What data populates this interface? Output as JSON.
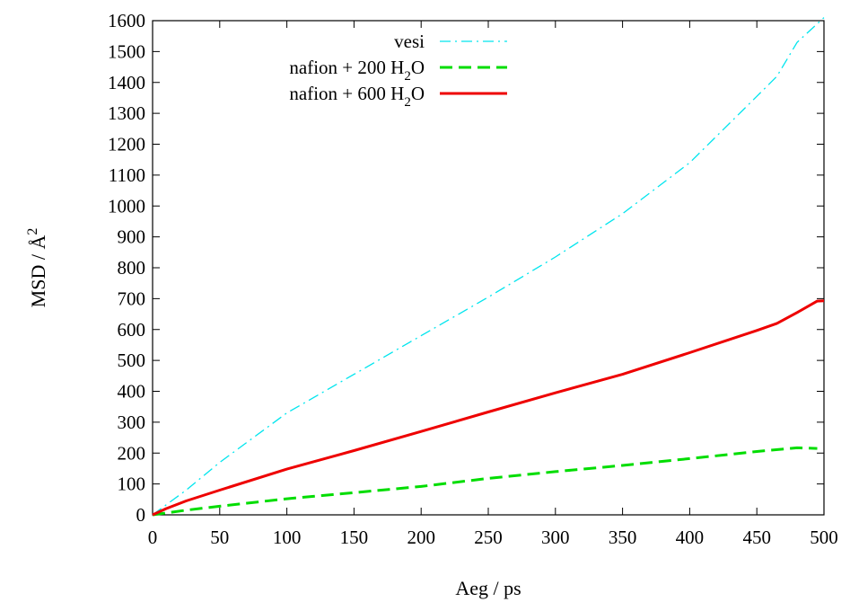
{
  "chart_data": {
    "type": "line",
    "xlabel": "Aeg / ps",
    "ylabel_main": "MSD / Å",
    "ylabel_sup": "2",
    "xlim": [
      0,
      500
    ],
    "ylim": [
      0,
      1600
    ],
    "xticks": [
      0,
      50,
      100,
      150,
      200,
      250,
      300,
      350,
      400,
      450,
      500
    ],
    "yticks": [
      0,
      100,
      200,
      300,
      400,
      500,
      600,
      700,
      800,
      900,
      1000,
      1100,
      1200,
      1300,
      1400,
      1500,
      1600
    ],
    "grid": false,
    "legend_position": "top-center",
    "series": [
      {
        "legend_main": "vesi",
        "legend_sub": "",
        "legend_tail": "",
        "color": "#00e5ee",
        "style": "dash-dot",
        "x": [
          0,
          25,
          50,
          100,
          150,
          200,
          250,
          300,
          350,
          400,
          450,
          465,
          480,
          500
        ],
        "y": [
          0,
          80,
          170,
          330,
          455,
          580,
          705,
          835,
          975,
          1140,
          1355,
          1420,
          1530,
          1610
        ]
      },
      {
        "legend_main": "nafion + 200 H",
        "legend_sub": "2",
        "legend_tail": "O",
        "color": "#00dd00",
        "style": "dashed",
        "x": [
          0,
          25,
          50,
          100,
          150,
          200,
          250,
          300,
          350,
          400,
          450,
          480,
          495
        ],
        "y": [
          0,
          15,
          28,
          52,
          72,
          92,
          118,
          140,
          160,
          182,
          205,
          217,
          215
        ]
      },
      {
        "legend_main": "nafion + 600 H",
        "legend_sub": "2",
        "legend_tail": "O",
        "color": "#ee0000",
        "style": "solid",
        "x": [
          0,
          10,
          25,
          50,
          100,
          150,
          200,
          250,
          300,
          350,
          400,
          450,
          465,
          480,
          495,
          500
        ],
        "y": [
          0,
          20,
          45,
          80,
          148,
          208,
          270,
          333,
          395,
          455,
          525,
          597,
          620,
          655,
          692,
          693
        ]
      }
    ]
  }
}
